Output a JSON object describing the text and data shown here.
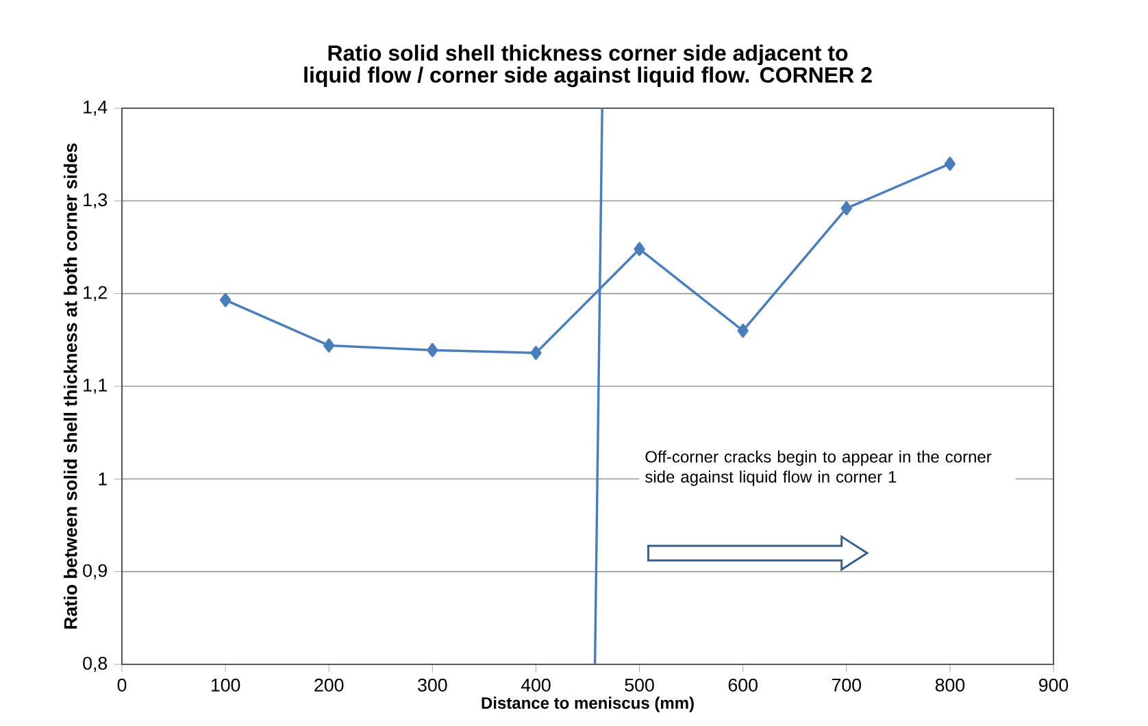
{
  "chart_data": {
    "type": "line",
    "title": "Ratio solid shell thickness corner side adjacent to liquid flow / corner side against liquid flow.    CORNER 2",
    "xlabel": "Distance to meniscus  (mm)",
    "ylabel": "Ratio between solid shell thickness at both corner sides",
    "x": [
      100,
      200,
      300,
      400,
      500,
      600,
      700,
      800
    ],
    "series": [
      {
        "color": "#4a7ebb",
        "values": [
          1.193,
          1.144,
          1.139,
          1.136,
          1.248,
          1.16,
          1.292,
          1.34
        ],
        "marker": "diamond"
      },
      {
        "type": "line",
        "color": "#4a7ebb",
        "x": [
          457,
          464
        ],
        "values": [
          0.8,
          1.4
        ],
        "marker": "none"
      }
    ],
    "xlim": [
      0,
      900
    ],
    "xticks": [
      0,
      100,
      200,
      300,
      400,
      500,
      600,
      700,
      800,
      900
    ],
    "ylim": [
      0.8,
      1.4
    ],
    "yticks": [
      {
        "value": 0.8,
        "label": "0,8"
      },
      {
        "value": 0.9,
        "label": "0,9"
      },
      {
        "value": 1,
        "label": "1"
      },
      {
        "value": 1.1,
        "label": "1,1"
      },
      {
        "value": 1.2,
        "label": "1,2"
      },
      {
        "value": 1.3,
        "label": "1,3"
      },
      {
        "value": 1.4,
        "label": "1,4"
      }
    ],
    "grid": "y",
    "annotations": [
      "Off-corner cracks begin to appear in the corner side against liquid flow in corner 1"
    ]
  }
}
